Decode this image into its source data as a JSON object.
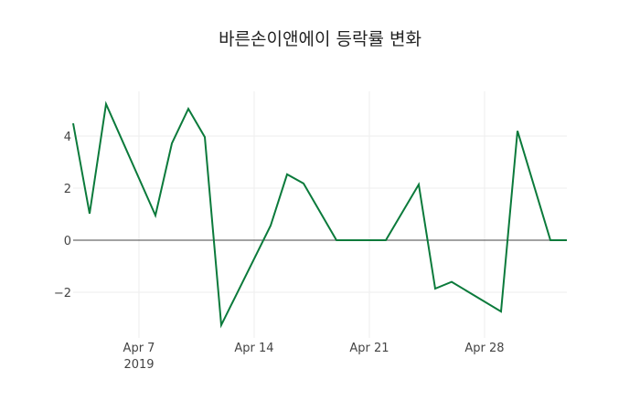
{
  "chart_data": {
    "type": "line",
    "title": "바른손이앤에이 등락률 변화",
    "xlabel": "",
    "ylabel": "",
    "x": [
      "2019-04-03",
      "2019-04-04",
      "2019-04-05",
      "2019-04-08",
      "2019-04-09",
      "2019-04-10",
      "2019-04-11",
      "2019-04-12",
      "2019-04-15",
      "2019-04-16",
      "2019-04-17",
      "2019-04-19",
      "2019-04-22",
      "2019-04-24",
      "2019-04-25",
      "2019-04-26",
      "2019-04-29",
      "2019-04-30",
      "2019-05-02",
      "2019-05-03"
    ],
    "series": [
      {
        "name": "등락률",
        "color": "#0b7a3b",
        "values": [
          4.49,
          1.02,
          5.23,
          0.95,
          3.72,
          5.05,
          3.96,
          -3.26,
          0.56,
          2.53,
          2.18,
          0,
          0,
          2.14,
          -1.86,
          -1.6,
          -2.74,
          4.2,
          0,
          0
        ]
      }
    ],
    "ylim": [
      -3.6,
      5.6
    ],
    "yticks": [
      -2,
      0,
      2,
      4
    ],
    "ytick_labels": [
      "−2",
      "0",
      "2",
      "4"
    ],
    "xticks": [
      "Apr 7",
      "Apr 14",
      "Apr 21",
      "Apr 28"
    ],
    "xtick_sublabel": "2019",
    "grid": true,
    "legend": false
  }
}
